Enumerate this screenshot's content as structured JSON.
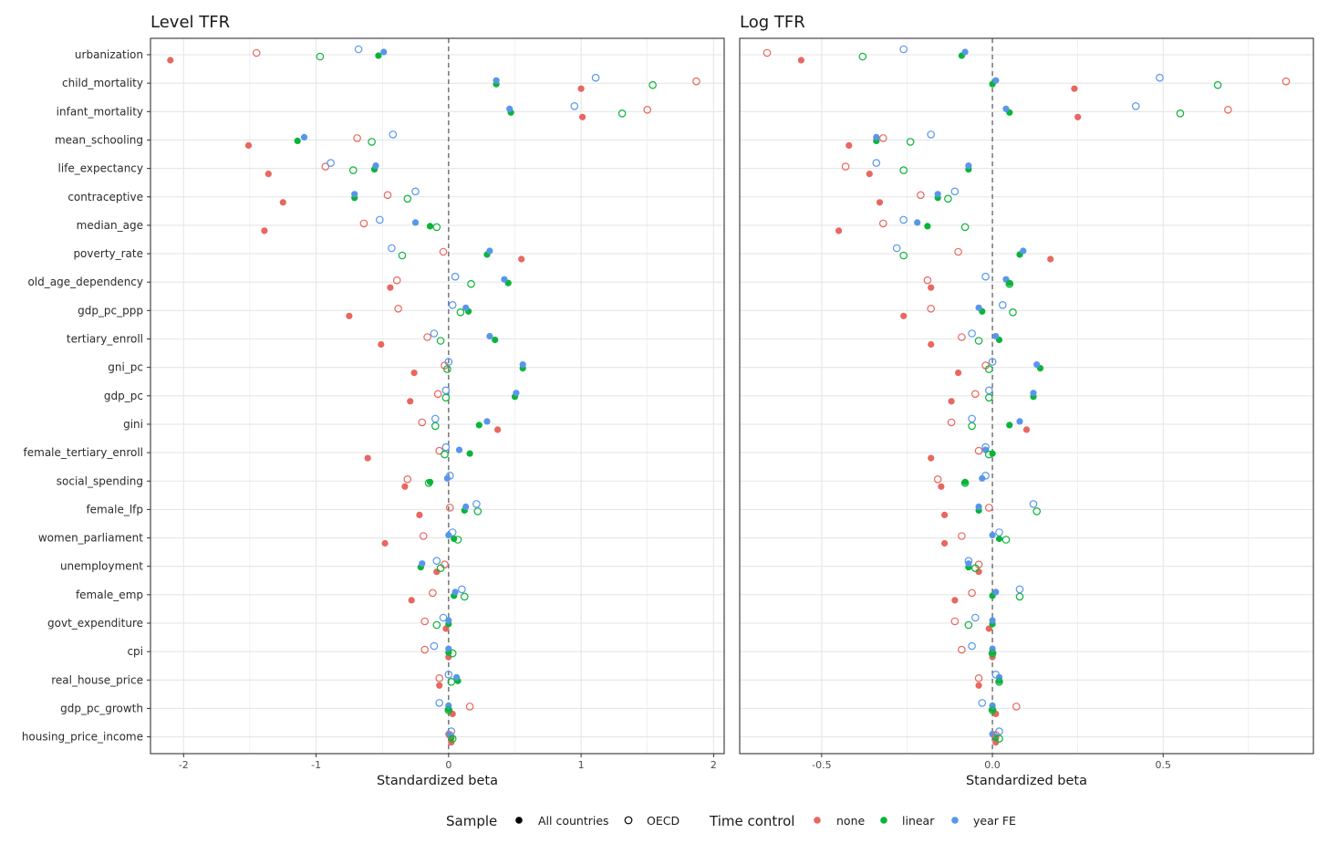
{
  "colors": {
    "none": "#e8675f",
    "linear": "#0ab438",
    "yearfe": "#5796ea",
    "grid": "#e6e6e6",
    "frame": "#333333",
    "text": "#1a1a1a",
    "zero": "#555555"
  },
  "legend": {
    "sample_title": "Sample",
    "sample_items": [
      "All countries",
      "OECD"
    ],
    "time_title": "Time control",
    "time_items": [
      "none",
      "linear",
      "year FE"
    ]
  },
  "chart_data": [
    {
      "type": "scatter",
      "title": "Level TFR",
      "xlabel": "Standardized beta",
      "ylabel": "",
      "xlim": [
        -2.25,
        2.08
      ],
      "xticks": [
        -2,
        -1,
        0,
        1,
        2
      ],
      "xtick_labels": [
        "-2",
        "-1",
        "0",
        "1",
        "2"
      ],
      "grid": true,
      "categories": [
        "urbanization",
        "child_mortality",
        "infant_mortality",
        "mean_schooling",
        "life_expectancy",
        "contraceptive",
        "median_age",
        "poverty_rate",
        "old_age_dependency",
        "gdp_pc_ppp",
        "tertiary_enroll",
        "gni_pc",
        "gdp_pc",
        "gini",
        "female_tertiary_enroll",
        "social_spending",
        "female_lfp",
        "women_parliament",
        "unemployment",
        "female_emp",
        "govt_expenditure",
        "cpi",
        "real_house_price",
        "gdp_pc_growth",
        "housing_price_income"
      ],
      "series": [
        {
          "name": "All countries · none",
          "sample": "All countries",
          "time": "none",
          "values": [
            -2.1,
            1.0,
            1.01,
            -1.51,
            -1.36,
            -1.25,
            -1.39,
            0.55,
            -0.44,
            -0.75,
            -0.51,
            -0.26,
            -0.29,
            0.37,
            -0.61,
            -0.33,
            -0.22,
            -0.48,
            -0.09,
            -0.28,
            -0.02,
            0.0,
            -0.07,
            0.03,
            0.02
          ]
        },
        {
          "name": "All countries · linear",
          "sample": "All countries",
          "time": "linear",
          "values": [
            -0.53,
            0.36,
            0.47,
            -1.14,
            -0.56,
            -0.71,
            -0.14,
            0.29,
            0.45,
            0.15,
            0.35,
            0.56,
            0.5,
            0.23,
            0.16,
            -0.14,
            0.12,
            0.04,
            -0.21,
            0.04,
            0.0,
            0.0,
            0.07,
            0.0,
            0.02
          ]
        },
        {
          "name": "All countries · year FE",
          "sample": "All countries",
          "time": "year FE",
          "values": [
            -0.49,
            0.36,
            0.46,
            -1.09,
            -0.55,
            -0.71,
            -0.25,
            0.31,
            0.42,
            0.13,
            0.31,
            0.56,
            0.51,
            0.29,
            0.08,
            -0.01,
            0.13,
            0.0,
            -0.2,
            0.05,
            0.0,
            0.0,
            0.06,
            0.0,
            0.0
          ]
        },
        {
          "name": "OECD · none",
          "sample": "OECD",
          "time": "none",
          "values": [
            -1.45,
            1.87,
            1.5,
            -0.69,
            -0.93,
            -0.46,
            -0.64,
            -0.04,
            -0.39,
            -0.38,
            -0.16,
            -0.03,
            -0.08,
            -0.2,
            -0.07,
            -0.31,
            0.01,
            -0.19,
            -0.03,
            -0.12,
            -0.18,
            -0.18,
            -0.07,
            0.16,
            0.01
          ]
        },
        {
          "name": "OECD · linear",
          "sample": "OECD",
          "time": "linear",
          "values": [
            -0.97,
            1.54,
            1.31,
            -0.58,
            -0.72,
            -0.31,
            -0.09,
            -0.35,
            0.17,
            0.09,
            -0.06,
            -0.01,
            -0.02,
            -0.1,
            -0.03,
            -0.15,
            0.22,
            0.07,
            -0.06,
            0.12,
            -0.09,
            0.03,
            0.02,
            0.0,
            0.03
          ]
        },
        {
          "name": "OECD · year FE",
          "sample": "OECD",
          "time": "year FE",
          "values": [
            -0.68,
            1.11,
            0.95,
            -0.42,
            -0.89,
            -0.25,
            -0.52,
            -0.43,
            0.05,
            0.03,
            -0.11,
            0.0,
            -0.02,
            -0.1,
            -0.02,
            0.01,
            0.21,
            0.03,
            -0.09,
            0.1,
            -0.04,
            -0.11,
            0.0,
            -0.07,
            0.02
          ]
        }
      ]
    },
    {
      "type": "scatter",
      "title": "Log TFR",
      "xlabel": "Standardized beta",
      "ylabel": "",
      "xlim": [
        -0.74,
        0.94
      ],
      "xticks": [
        -0.5,
        0.0,
        0.5
      ],
      "xtick_labels": [
        "-0.5",
        "0.0",
        "0.5"
      ],
      "grid": true,
      "categories": [
        "urbanization",
        "child_mortality",
        "infant_mortality",
        "mean_schooling",
        "life_expectancy",
        "contraceptive",
        "median_age",
        "poverty_rate",
        "old_age_dependency",
        "gdp_pc_ppp",
        "tertiary_enroll",
        "gni_pc",
        "gdp_pc",
        "gini",
        "female_tertiary_enroll",
        "social_spending",
        "female_lfp",
        "women_parliament",
        "unemployment",
        "female_emp",
        "govt_expenditure",
        "cpi",
        "real_house_price",
        "gdp_pc_growth",
        "housing_price_income"
      ],
      "series": [
        {
          "name": "All countries · none",
          "sample": "All countries",
          "time": "none",
          "values": [
            -0.56,
            0.24,
            0.25,
            -0.42,
            -0.36,
            -0.33,
            -0.45,
            0.17,
            -0.18,
            -0.26,
            -0.18,
            -0.1,
            -0.12,
            0.1,
            -0.18,
            -0.15,
            -0.14,
            -0.14,
            -0.04,
            -0.11,
            -0.01,
            0.0,
            -0.04,
            0.01,
            0.01
          ]
        },
        {
          "name": "All countries · linear",
          "sample": "All countries",
          "time": "linear",
          "values": [
            -0.09,
            0.0,
            0.05,
            -0.34,
            -0.07,
            -0.16,
            -0.19,
            0.08,
            0.05,
            -0.03,
            0.02,
            0.14,
            0.12,
            0.05,
            0.0,
            -0.08,
            -0.04,
            0.02,
            -0.07,
            0.0,
            0.0,
            0.0,
            0.02,
            0.0,
            0.01
          ]
        },
        {
          "name": "All countries · year FE",
          "sample": "All countries",
          "time": "year FE",
          "values": [
            -0.08,
            0.01,
            0.04,
            -0.34,
            -0.07,
            -0.16,
            -0.22,
            0.09,
            0.04,
            -0.04,
            0.01,
            0.13,
            0.12,
            0.08,
            -0.02,
            -0.03,
            -0.04,
            0.0,
            -0.07,
            0.01,
            0.0,
            0.0,
            0.02,
            0.0,
            0.0
          ]
        },
        {
          "name": "OECD · none",
          "sample": "OECD",
          "time": "none",
          "values": [
            -0.66,
            0.86,
            0.69,
            -0.32,
            -0.43,
            -0.21,
            -0.32,
            -0.1,
            -0.19,
            -0.18,
            -0.09,
            -0.02,
            -0.05,
            -0.12,
            -0.04,
            -0.16,
            -0.01,
            -0.09,
            -0.04,
            -0.06,
            -0.11,
            -0.09,
            -0.04,
            0.07,
            0.01
          ]
        },
        {
          "name": "OECD · linear",
          "sample": "OECD",
          "time": "linear",
          "values": [
            -0.38,
            0.66,
            0.55,
            -0.24,
            -0.26,
            -0.13,
            -0.08,
            -0.26,
            0.05,
            0.06,
            -0.04,
            -0.01,
            -0.01,
            -0.06,
            -0.01,
            -0.08,
            0.13,
            0.04,
            -0.05,
            0.08,
            -0.07,
            0.0,
            0.02,
            0.0,
            0.02
          ]
        },
        {
          "name": "OECD · year FE",
          "sample": "OECD",
          "time": "year FE",
          "values": [
            -0.26,
            0.49,
            0.42,
            -0.18,
            -0.34,
            -0.11,
            -0.26,
            -0.28,
            -0.02,
            0.03,
            -0.06,
            0.0,
            -0.01,
            -0.06,
            -0.02,
            -0.02,
            0.12,
            0.02,
            -0.07,
            0.08,
            -0.05,
            -0.06,
            0.01,
            -0.03,
            0.02
          ]
        }
      ]
    }
  ]
}
